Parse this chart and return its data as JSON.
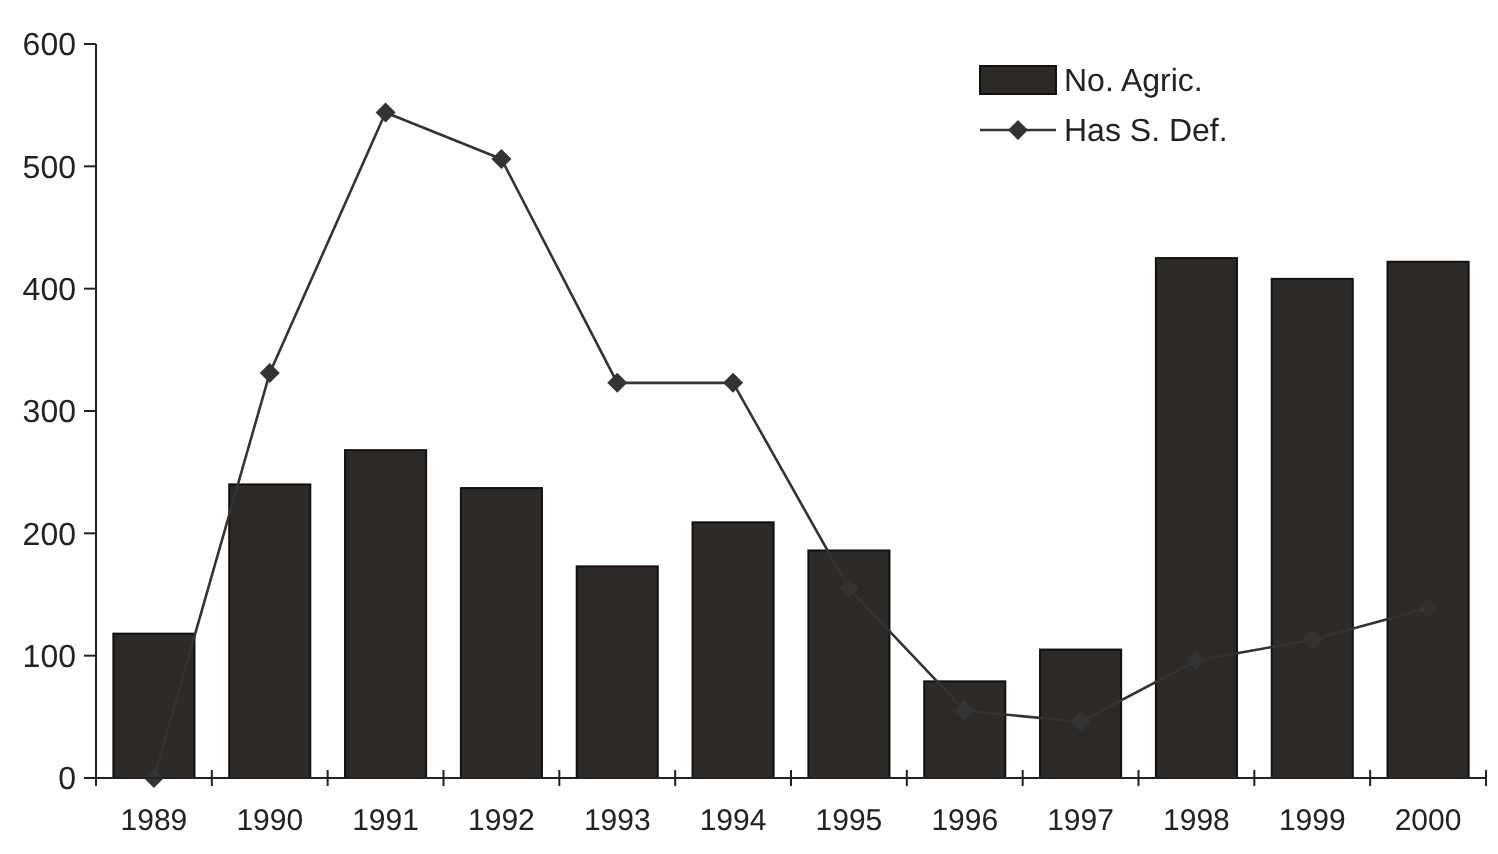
{
  "chart_data": {
    "type": "bar",
    "categories": [
      "1989",
      "1990",
      "1991",
      "1992",
      "1993",
      "1994",
      "1995",
      "1996",
      "1997",
      "1998",
      "1999",
      "2000"
    ],
    "series": [
      {
        "name": "No. Agric.",
        "color": "#2e2a28",
        "values": [
          118,
          240,
          268,
          237,
          173,
          209,
          186,
          79,
          105,
          425,
          408,
          422
        ]
      },
      {
        "name": "Has S. Def.",
        "type": "line",
        "color": "#333333",
        "marker": "diamond",
        "values": [
          0,
          331,
          544,
          506,
          323,
          323,
          155,
          55,
          46,
          96,
          113,
          139
        ]
      }
    ],
    "ylim": [
      0,
      600
    ],
    "yticks": [
      0,
      100,
      200,
      300,
      400,
      500,
      600
    ],
    "legend": "top right",
    "grid": false
  }
}
